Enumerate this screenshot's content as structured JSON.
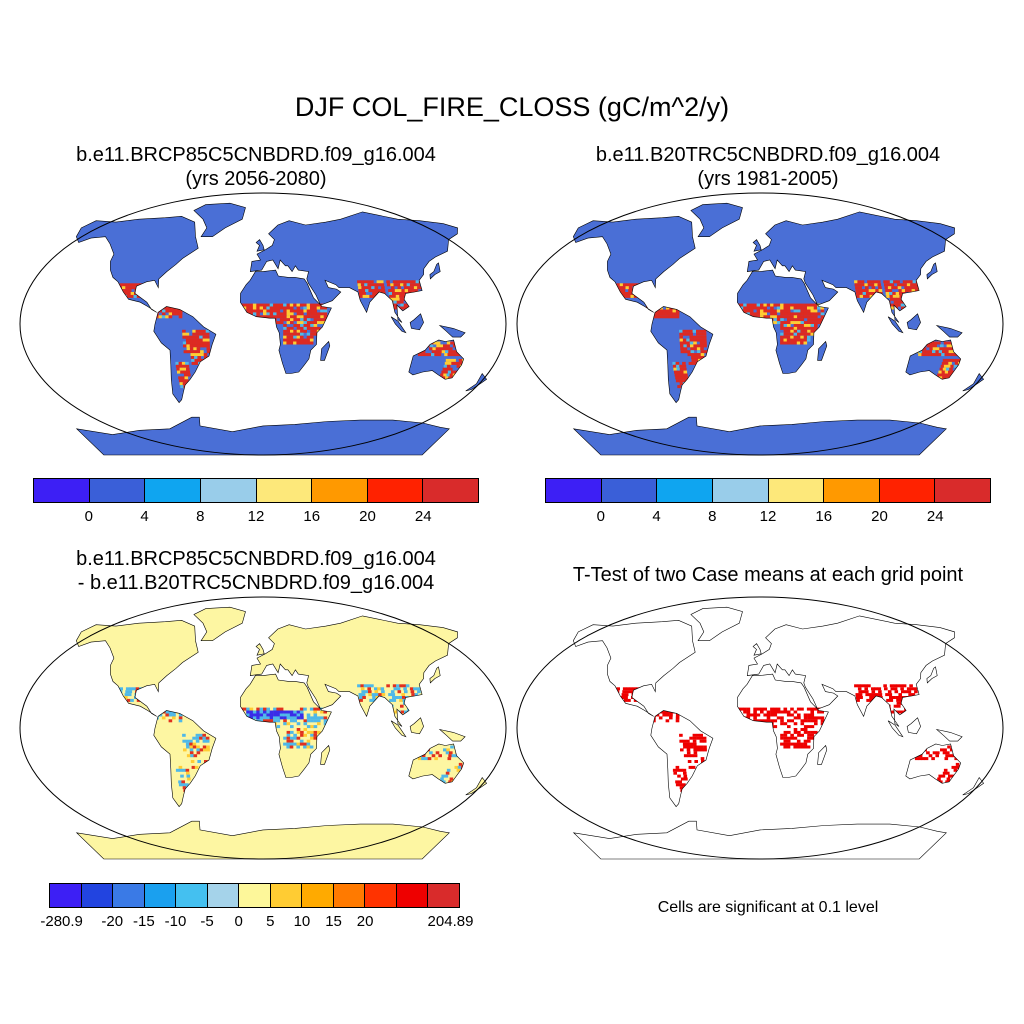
{
  "title": "DJF COL_FIRE_CLOSS (gC/m^2/y)",
  "panels": {
    "top_left": {
      "line1": "b.e11.BRCP85C5CNBDRD.f09_g16.004",
      "line2": "(yrs 2056-2080)"
    },
    "top_right": {
      "line1": "b.e11.B20TRC5CNBDRD.f09_g16.004",
      "line2": "(yrs 1981-2005)"
    },
    "bottom_left": {
      "line1": "b.e11.BRCP85C5CNBDRD.f09_g16.004",
      "line2": "- b.e11.B20TRC5CNBDRD.f09_g16.004"
    },
    "bottom_right": {
      "line1": "T-Test of two Case means at each grid point"
    }
  },
  "colorbar_abs": {
    "colors": [
      "#3d1ff5",
      "#3a5fd8",
      "#0fa5f0",
      "#99cdea",
      "#fde87a",
      "#ff9900",
      "#ff2200",
      "#d92b2b"
    ],
    "ticks": [
      "0",
      "4",
      "8",
      "12",
      "16",
      "20",
      "24"
    ]
  },
  "colorbar_diff": {
    "colors": [
      "#3d1ff5",
      "#2244e0",
      "#3a7ae6",
      "#1aa0ef",
      "#44c0f0",
      "#a5d3ea",
      "#fdf79a",
      "#ffcc33",
      "#ffaa00",
      "#ff7a00",
      "#ff3300",
      "#ee0000",
      "#d92b2b"
    ],
    "ticks": [
      "-280.9",
      "-20",
      "-15",
      "-10",
      "-5",
      "0",
      "5",
      "10",
      "15",
      "20",
      "204.89"
    ]
  },
  "fills": {
    "base": "#4a6fd6",
    "fire_high": "#dd2a22",
    "fire_mid": "#ffcc33",
    "fire_low": "#4fb8e8",
    "diff_base": "#fdf6a2",
    "diff_neg": "#3a2de8",
    "diff_pos": "#e0301e",
    "sig": "#ee0000"
  },
  "significance_note": "Cells are significant at 0.1 level"
}
